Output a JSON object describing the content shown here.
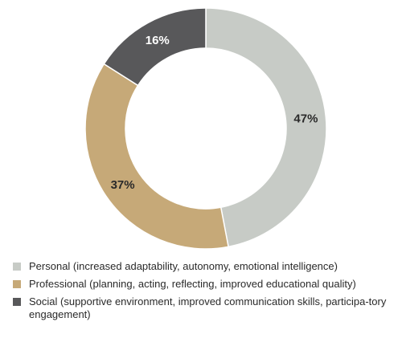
{
  "chart_data": {
    "type": "pie",
    "donut": true,
    "categories": [
      "Personal (increased adaptability, autonomy, emotional intelligence)",
      "Professional (planning, acting, reflecting, improved educational quality)",
      "Social (supportive environment, improved communication skills, participa-tory engagement)"
    ],
    "values": [
      47,
      37,
      16
    ],
    "value_labels": [
      "47%",
      "37%",
      "16%"
    ],
    "colors": [
      "#c7cbc6",
      "#c6a978",
      "#58585a"
    ],
    "label_colors": [
      "#2a2a2a",
      "#2a2a2a",
      "#ffffff"
    ],
    "legend": "bottom",
    "title": "",
    "xlabel": "",
    "ylabel": ""
  },
  "legend_items": [
    {
      "label": "Personal (increased adaptability, autonomy, emotional intelligence)",
      "color": "#c7cbc6"
    },
    {
      "label": "Professional (planning, acting, reflecting, improved educational quality)",
      "color": "#c6a978"
    },
    {
      "label": "Social (supportive environment, improved communication skills, participa-tory engagement)",
      "color": "#58585a"
    }
  ]
}
